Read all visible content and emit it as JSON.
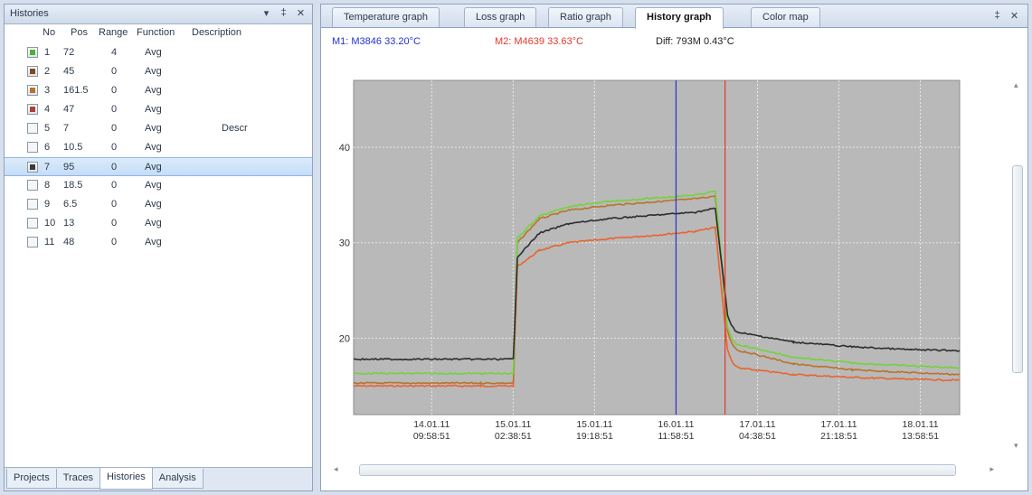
{
  "left_panel": {
    "title": "Histories",
    "window_buttons": [
      "▾",
      "‡",
      "✕"
    ],
    "columns": [
      "No",
      "Pos",
      "Range",
      "Function",
      "Description"
    ],
    "rows": [
      {
        "checked": true,
        "color": "#4caf3a",
        "no": "1",
        "pos": "72",
        "range": "4",
        "func": "Avg",
        "desc": ""
      },
      {
        "checked": true,
        "color": "#7a4e22",
        "no": "2",
        "pos": "45",
        "range": "0",
        "func": "Avg",
        "desc": ""
      },
      {
        "checked": true,
        "color": "#b8732a",
        "no": "3",
        "pos": "161.5",
        "range": "0",
        "func": "Avg",
        "desc": ""
      },
      {
        "checked": true,
        "color": "#a8423a",
        "no": "4",
        "pos": "47",
        "range": "0",
        "func": "Avg",
        "desc": ""
      },
      {
        "checked": false,
        "color": "",
        "no": "5",
        "pos": "7",
        "range": "0",
        "func": "Avg",
        "desc": "Descr"
      },
      {
        "checked": false,
        "color": "",
        "no": "6",
        "pos": "10.5",
        "range": "0",
        "func": "Avg",
        "desc": ""
      },
      {
        "checked": true,
        "color": "#3a3a3a",
        "no": "7",
        "pos": "95",
        "range": "0",
        "func": "Avg",
        "desc": "",
        "selected": true
      },
      {
        "checked": false,
        "color": "",
        "no": "8",
        "pos": "18.5",
        "range": "0",
        "func": "Avg",
        "desc": ""
      },
      {
        "checked": false,
        "color": "",
        "no": "9",
        "pos": "6.5",
        "range": "0",
        "func": "Avg",
        "desc": ""
      },
      {
        "checked": false,
        "color": "",
        "no": "10",
        "pos": "13",
        "range": "0",
        "func": "Avg",
        "desc": ""
      },
      {
        "checked": false,
        "color": "",
        "no": "11",
        "pos": "48",
        "range": "0",
        "func": "Avg",
        "desc": ""
      }
    ],
    "bottom_tabs": [
      "Projects",
      "Traces",
      "Histories",
      "Analysis"
    ],
    "active_bottom_tab": "Histories"
  },
  "document": {
    "tabs": [
      "Temperature graph",
      "Loss graph",
      "Ratio graph",
      "History graph",
      "Color map"
    ],
    "active_tab": "History graph",
    "window_buttons": [
      "‡",
      "✕"
    ]
  },
  "readout": {
    "m1": "M1:  M3846 33.20°C",
    "m2": "M2:  M4639 33.63°C",
    "diff": "Diff:  793M 0.43°C",
    "m1_color": "#2233cc",
    "m2_color": "#e03a2a",
    "diff_color": "#222222"
  },
  "chart_data": {
    "type": "line",
    "title": "",
    "xlabel": "",
    "ylabel": "",
    "ylim": [
      12,
      47
    ],
    "yticks": [
      20,
      30,
      40
    ],
    "x_ticks": [
      {
        "date": "14.01.11",
        "time": "09:58:51"
      },
      {
        "date": "15.01.11",
        "time": "02:38:51"
      },
      {
        "date": "15.01.11",
        "time": "19:18:51"
      },
      {
        "date": "16.01.11",
        "time": "11:58:51"
      },
      {
        "date": "17.01.11",
        "time": "04:38:51"
      },
      {
        "date": "17.01.11",
        "time": "21:18:51"
      },
      {
        "date": "18.01.11",
        "time": "13:58:51"
      }
    ],
    "grid": true,
    "background": "#b9b9b9",
    "series": [
      {
        "color": "#e8642e",
        "x": [
          "13.01.11 18:00",
          "14.01.11 20:00",
          "15.01.11 02:40",
          "15.01.11 03:30",
          "15.01.11 08:00",
          "15.01.11 14:00",
          "15.01.11 22:00",
          "16.01.11 08:00",
          "16.01.11 16:00",
          "16.01.11 20:00",
          "16.01.11 22:30",
          "17.01.11 02:00",
          "17.01.11 12:00",
          "18.01.11 00:00",
          "18.01.11 12:00",
          "18.01.11 22:00"
        ],
        "y": [
          15.0,
          15.0,
          15.0,
          27.5,
          29.2,
          30.0,
          30.4,
          30.8,
          31.2,
          31.6,
          18.8,
          16.8,
          16.2,
          15.9,
          15.7,
          15.6
        ]
      },
      {
        "color": "#b8732a",
        "x": [
          "13.01.11 18:00",
          "14.01.11 20:00",
          "15.01.11 02:40",
          "15.01.11 03:30",
          "15.01.11 08:00",
          "15.01.11 14:00",
          "15.01.11 22:00",
          "16.01.11 08:00",
          "16.01.11 16:00",
          "16.01.11 20:00",
          "16.01.11 22:30",
          "17.01.11 02:00",
          "17.01.11 12:00",
          "18.01.11 00:00",
          "18.01.11 12:00",
          "18.01.11 22:00"
        ],
        "y": [
          15.3,
          15.3,
          15.3,
          30.0,
          32.5,
          33.4,
          33.9,
          34.3,
          34.6,
          34.9,
          20.8,
          18.6,
          17.3,
          16.7,
          16.4,
          16.2
        ]
      },
      {
        "color": "#74d23c",
        "x": [
          "13.01.11 18:00",
          "14.01.11 20:00",
          "15.01.11 02:40",
          "15.01.11 03:30",
          "15.01.11 08:00",
          "15.01.11 14:00",
          "15.01.11 22:00",
          "16.01.11 08:00",
          "16.01.11 16:00",
          "16.01.11 20:00",
          "16.01.11 22:30",
          "17.01.11 02:00",
          "17.01.11 12:00",
          "18.01.11 00:00",
          "18.01.11 12:00",
          "18.01.11 22:00"
        ],
        "y": [
          16.3,
          16.3,
          16.3,
          30.5,
          32.8,
          33.8,
          34.3,
          34.7,
          35.0,
          35.4,
          21.2,
          19.2,
          18.0,
          17.4,
          17.1,
          16.9
        ]
      },
      {
        "color": "#2d2d2d",
        "x": [
          "13.01.11 18:00",
          "14.01.11 20:00",
          "15.01.11 02:40",
          "15.01.11 03:30",
          "15.01.11 08:00",
          "15.01.11 14:00",
          "15.01.11 22:00",
          "16.01.11 08:00",
          "16.01.11 16:00",
          "16.01.11 20:00",
          "16.01.11 22:30",
          "17.01.11 02:00",
          "17.01.11 12:00",
          "18.01.11 00:00",
          "18.01.11 12:00",
          "18.01.11 22:00"
        ],
        "y": [
          17.8,
          17.8,
          17.8,
          28.5,
          31.0,
          32.0,
          32.5,
          32.9,
          33.2,
          33.6,
          22.5,
          20.5,
          19.6,
          19.1,
          18.8,
          18.7
        ]
      }
    ],
    "markers": [
      {
        "name": "M1",
        "x": "16.01.11 11:58",
        "color": "#2233cc"
      },
      {
        "name": "M2",
        "x": "16.01.11 22:00",
        "color": "#e03a2a"
      }
    ]
  }
}
